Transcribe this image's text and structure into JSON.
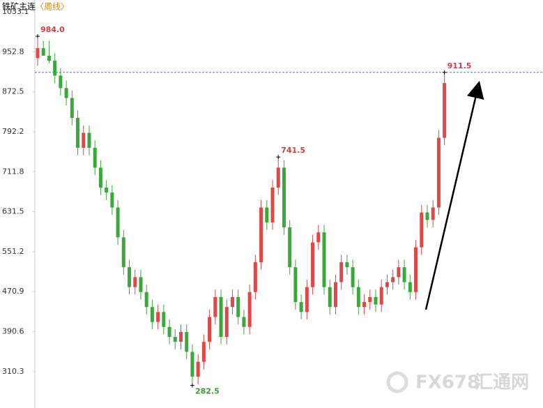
{
  "chart_data": {
    "type": "candlestick",
    "title": "铁矿主连",
    "subtitle": "〈周线〉",
    "watermark": [
      "FX678",
      "汇通网"
    ],
    "ylim": [
      237.1,
      1056.9
    ],
    "yticks": [
      310.3,
      390.6,
      470.9,
      551.2,
      631.5,
      711.8,
      792.2,
      872.5,
      952.8,
      1033.1
    ],
    "grid": false,
    "up_color": "#e04848",
    "down_color": "#3aa83a",
    "reference_line": 911.5,
    "open": [
      940,
      960,
      945,
      935,
      905,
      880,
      860,
      820,
      760,
      790,
      760,
      720,
      680,
      670,
      640,
      580,
      520,
      480,
      500,
      470,
      440,
      410,
      430,
      400,
      380,
      370,
      390,
      350,
      300,
      330,
      370,
      420,
      460,
      380,
      440,
      460,
      420,
      400,
      470,
      530,
      640,
      610,
      680,
      720,
      600,
      520,
      450,
      430,
      480,
      570,
      590,
      480,
      440,
      490,
      530,
      520,
      480,
      440,
      450,
      460,
      445,
      480,
      490,
      500,
      520,
      490,
      470,
      560,
      630,
      615,
      640,
      780
    ],
    "high": [
      984,
      975,
      975,
      950,
      920,
      895,
      875,
      835,
      805,
      805,
      775,
      735,
      695,
      685,
      655,
      595,
      535,
      515,
      515,
      485,
      455,
      445,
      445,
      415,
      395,
      405,
      405,
      365,
      345,
      385,
      435,
      475,
      475,
      455,
      475,
      475,
      435,
      485,
      545,
      655,
      655,
      695,
      741.5,
      735,
      615,
      535,
      465,
      495,
      585,
      605,
      605,
      495,
      505,
      545,
      545,
      535,
      495,
      465,
      475,
      475,
      495,
      505,
      515,
      535,
      535,
      505,
      575,
      645,
      645,
      655,
      795,
      911.5
    ],
    "low": [
      925,
      945,
      930,
      890,
      865,
      845,
      805,
      745,
      745,
      745,
      705,
      665,
      655,
      625,
      565,
      505,
      465,
      465,
      455,
      425,
      395,
      395,
      385,
      365,
      355,
      355,
      335,
      282.5,
      285,
      315,
      355,
      405,
      365,
      365,
      425,
      405,
      385,
      385,
      455,
      515,
      595,
      595,
      665,
      585,
      505,
      435,
      415,
      415,
      465,
      555,
      465,
      425,
      425,
      475,
      505,
      465,
      425,
      425,
      435,
      430,
      430,
      465,
      475,
      485,
      475,
      455,
      455,
      545,
      600,
      600,
      625,
      765
    ],
    "close": [
      960,
      945,
      935,
      905,
      880,
      860,
      820,
      760,
      790,
      760,
      720,
      680,
      670,
      640,
      580,
      520,
      480,
      500,
      470,
      440,
      410,
      430,
      400,
      380,
      370,
      390,
      350,
      300,
      330,
      370,
      420,
      460,
      380,
      440,
      460,
      420,
      400,
      470,
      530,
      640,
      610,
      680,
      720,
      600,
      520,
      450,
      430,
      480,
      570,
      590,
      480,
      440,
      490,
      530,
      520,
      480,
      440,
      450,
      460,
      445,
      480,
      490,
      500,
      520,
      490,
      470,
      560,
      630,
      615,
      640,
      780,
      890
    ],
    "annotations": [
      {
        "value": 984,
        "label": "984.0",
        "color": "#d04040"
      },
      {
        "value": 741.5,
        "label": "741.5",
        "color": "#d04040"
      },
      {
        "value": 282.5,
        "label": "282.5",
        "color": "#3a9a3a"
      },
      {
        "value": 911.5,
        "label": "911.5",
        "color": "#d04040"
      }
    ]
  }
}
